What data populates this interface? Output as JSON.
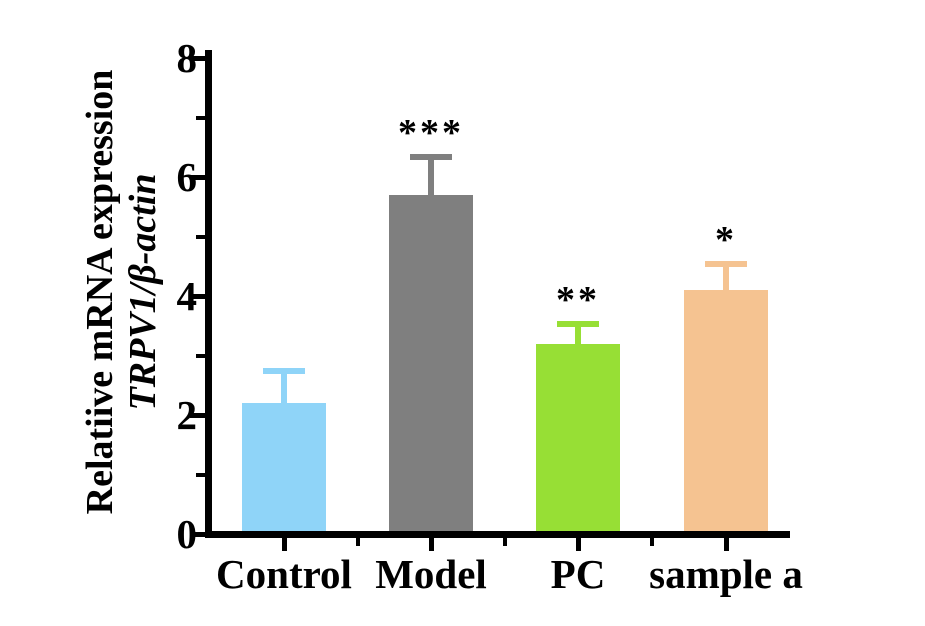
{
  "figure": {
    "background": "#FFFFFF",
    "axis_color": "#000000"
  },
  "chart_data": {
    "type": "bar",
    "title": "",
    "ylabel_line1": "Relatiive mRNA expression",
    "ylabel_line2": "TRPV1/β-actin",
    "xlabel": "",
    "categories": [
      "Control",
      "Model",
      "PC",
      "sample a"
    ],
    "values": [
      2.2,
      5.7,
      3.2,
      4.1
    ],
    "errors_upper": [
      0.5,
      0.6,
      0.3,
      0.4
    ],
    "error_tops": [
      2.7,
      6.3,
      3.5,
      4.5
    ],
    "significance": [
      "",
      "***",
      "**",
      "*"
    ],
    "bar_colors": [
      "#8FD4F8",
      "#7F7F7F",
      "#97DF35",
      "#F5C391"
    ],
    "error_bar_colors": [
      "#8FD4F8",
      "#7F7F7F",
      "#97DF35",
      "#F5C391"
    ],
    "significance_color": "#000000",
    "ylim": [
      0,
      8
    ],
    "yticks": [
      0,
      2,
      4,
      6,
      8
    ],
    "yminorticks": [
      1,
      3,
      5,
      7
    ],
    "grid": false,
    "legend": "none"
  }
}
